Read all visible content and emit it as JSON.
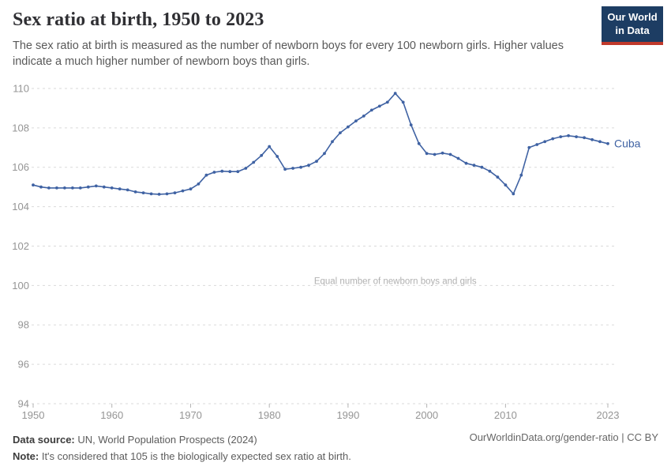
{
  "header": {
    "title": "Sex ratio at birth, 1950 to 2023",
    "subtitle": "The sex ratio at birth is measured as the number of newborn boys for every 100 newborn girls. Higher values indicate a much higher number of newborn boys than girls.",
    "logo": {
      "line1": "Our World",
      "line2": "in Data",
      "bg": "#1d3d63",
      "stripe": "#c0392b"
    }
  },
  "chart_data": {
    "type": "line",
    "title": "Sex ratio at birth, 1950 to 2023",
    "xlabel": "",
    "ylabel": "",
    "xlim": [
      1950,
      2023
    ],
    "ylim": [
      94,
      110.5
    ],
    "x_ticks": [
      1950,
      1960,
      1970,
      1980,
      1990,
      2000,
      2010,
      2023
    ],
    "y_ticks": [
      94,
      96,
      98,
      100,
      102,
      104,
      106,
      108,
      110
    ],
    "grid": "horizontal-dashed",
    "legend_position": "end-of-line-label",
    "annotation": {
      "text": "Equal number of newborn boys and girls",
      "y": 100,
      "x_center": 1996
    },
    "series": [
      {
        "name": "Cuba",
        "color": "#3f62a3",
        "x": [
          1950,
          1951,
          1952,
          1953,
          1954,
          1955,
          1956,
          1957,
          1958,
          1959,
          1960,
          1961,
          1962,
          1963,
          1964,
          1965,
          1966,
          1967,
          1968,
          1969,
          1970,
          1971,
          1972,
          1973,
          1974,
          1975,
          1976,
          1977,
          1978,
          1979,
          1980,
          1981,
          1982,
          1983,
          1984,
          1985,
          1986,
          1987,
          1988,
          1989,
          1990,
          1991,
          1992,
          1993,
          1994,
          1995,
          1996,
          1997,
          1998,
          1999,
          2000,
          2001,
          2002,
          2003,
          2004,
          2005,
          2006,
          2007,
          2008,
          2009,
          2010,
          2011,
          2012,
          2013,
          2014,
          2015,
          2016,
          2017,
          2018,
          2019,
          2020,
          2021,
          2022,
          2023
        ],
        "values": [
          105.1,
          105.0,
          104.95,
          104.95,
          104.95,
          104.95,
          104.95,
          105.0,
          105.05,
          105.0,
          104.95,
          104.9,
          104.85,
          104.75,
          104.7,
          104.65,
          104.63,
          104.65,
          104.7,
          104.8,
          104.9,
          105.15,
          105.6,
          105.75,
          105.8,
          105.78,
          105.78,
          105.95,
          106.25,
          106.6,
          107.05,
          106.55,
          105.9,
          105.95,
          106.0,
          106.1,
          106.3,
          106.7,
          107.3,
          107.75,
          108.05,
          108.35,
          108.6,
          108.9,
          109.1,
          109.3,
          109.75,
          109.3,
          108.15,
          107.2,
          106.7,
          106.65,
          106.72,
          106.65,
          106.45,
          106.2,
          106.1,
          106.0,
          105.8,
          105.5,
          105.1,
          104.65,
          105.6,
          107.0,
          107.15,
          107.3,
          107.45,
          107.55,
          107.6,
          107.55,
          107.5,
          107.4,
          107.3,
          107.2
        ]
      }
    ]
  },
  "footer": {
    "datasource_label": "Data source:",
    "datasource_value": " UN, World Population Prospects (2024)",
    "note_label": "Note:",
    "note_value": " It's considered that 105 is the biologically expected sex ratio at birth.",
    "rights": "OurWorldinData.org/gender-ratio | CC BY"
  },
  "colors": {
    "line": "#3f62a3",
    "grid": "#dadada",
    "axis_text": "#959595",
    "annotation_text": "#b1b1b1",
    "logo_bg": "#1d3d63",
    "logo_stripe": "#c0392b"
  }
}
